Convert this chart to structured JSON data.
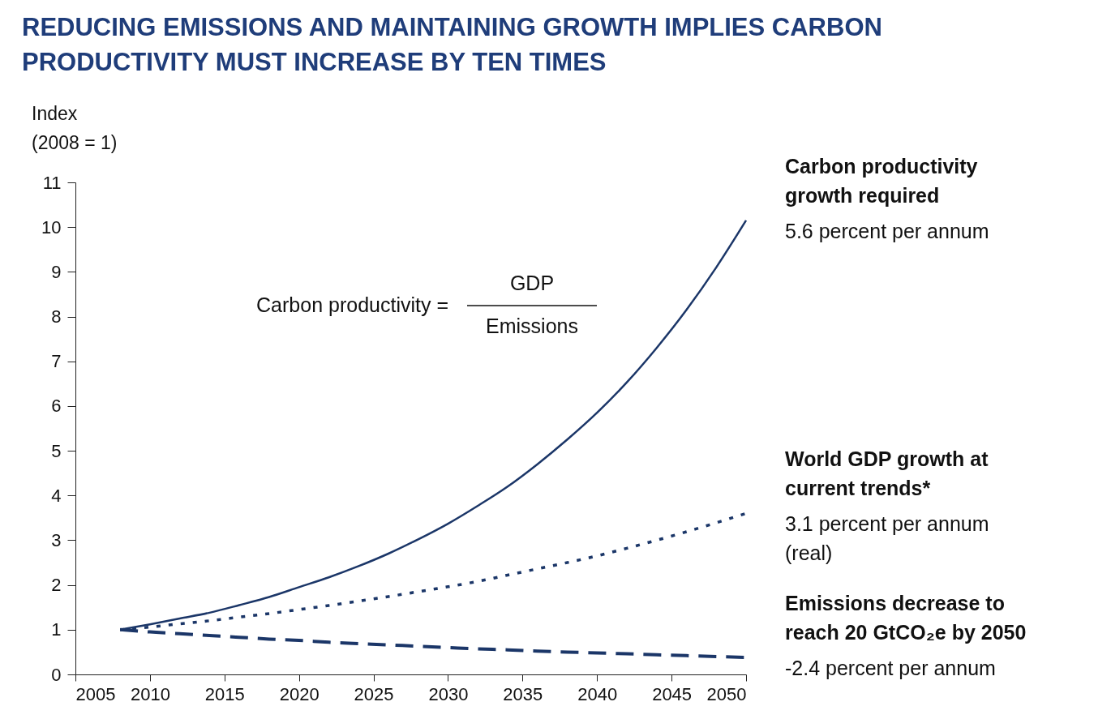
{
  "chart_data": {
    "type": "line",
    "title": "REDUCING EMISSIONS AND MAINTAINING GROWTH IMPLIES CARBON PRODUCTIVITY MUST INCREASE BY TEN TIMES",
    "ylabel": "Index (2008 = 1)",
    "x": [
      2008,
      2010,
      2012,
      2014,
      2016,
      2018,
      2020,
      2022,
      2024,
      2026,
      2028,
      2030,
      2032,
      2034,
      2036,
      2038,
      2040,
      2042,
      2044,
      2046,
      2048,
      2050
    ],
    "xlim": [
      2005,
      2050
    ],
    "xticks": [
      2005,
      2010,
      2015,
      2020,
      2025,
      2030,
      2035,
      2040,
      2045,
      2050
    ],
    "ylim": [
      0,
      11
    ],
    "yticks": [
      0,
      1,
      2,
      3,
      4,
      5,
      6,
      7,
      8,
      9,
      10,
      11
    ],
    "series": [
      {
        "name": "Carbon productivity growth required",
        "color": "#1b3668",
        "line_style": "solid",
        "values": [
          1,
          1.12,
          1.25,
          1.38,
          1.55,
          1.73,
          1.95,
          2.17,
          2.42,
          2.7,
          3.02,
          3.37,
          3.77,
          4.2,
          4.7,
          5.25,
          5.85,
          6.53,
          7.3,
          8.15,
          9.1,
          10.15
        ]
      },
      {
        "name": "World GDP growth at current trends*",
        "color": "#1b3668",
        "line_style": "dotted",
        "values": [
          1,
          1.06,
          1.13,
          1.2,
          1.28,
          1.36,
          1.45,
          1.54,
          1.64,
          1.74,
          1.85,
          1.96,
          2.08,
          2.22,
          2.36,
          2.5,
          2.65,
          2.82,
          3.0,
          3.19,
          3.39,
          3.6
        ]
      },
      {
        "name": "Emissions decrease to reach 20 GtCO₂e by 2050",
        "color": "#1b3668",
        "line_style": "dashed",
        "values": [
          1,
          0.95,
          0.91,
          0.87,
          0.83,
          0.79,
          0.76,
          0.72,
          0.69,
          0.66,
          0.63,
          0.6,
          0.57,
          0.55,
          0.52,
          0.5,
          0.48,
          0.46,
          0.44,
          0.42,
          0.4,
          0.38
        ]
      }
    ],
    "annotations": [
      "5.6 percent per annum",
      "3.1 percent per annum (real)",
      "-2.4 percent per annum",
      "Carbon productivity =",
      "GDP",
      "Emissions"
    ]
  }
}
